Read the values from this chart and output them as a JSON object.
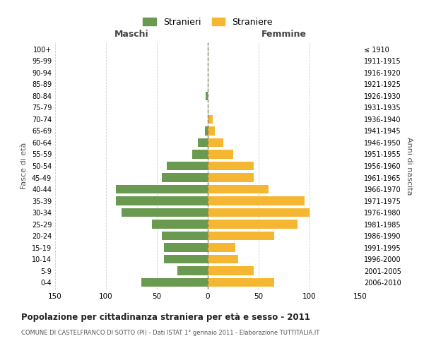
{
  "age_groups": [
    "0-4",
    "5-9",
    "10-14",
    "15-19",
    "20-24",
    "25-29",
    "30-34",
    "35-39",
    "40-44",
    "45-49",
    "50-54",
    "55-59",
    "60-64",
    "65-69",
    "70-74",
    "75-79",
    "80-84",
    "85-89",
    "90-94",
    "95-99",
    "100+"
  ],
  "birth_years": [
    "2006-2010",
    "2001-2005",
    "1996-2000",
    "1991-1995",
    "1986-1990",
    "1981-1985",
    "1976-1980",
    "1971-1975",
    "1966-1970",
    "1961-1965",
    "1956-1960",
    "1951-1955",
    "1946-1950",
    "1941-1945",
    "1936-1940",
    "1931-1935",
    "1926-1930",
    "1921-1925",
    "1916-1920",
    "1911-1915",
    "≤ 1910"
  ],
  "males": [
    65,
    30,
    43,
    43,
    45,
    55,
    85,
    90,
    90,
    45,
    40,
    15,
    10,
    3,
    0,
    0,
    2,
    0,
    0,
    0,
    0
  ],
  "females": [
    65,
    45,
    30,
    27,
    65,
    88,
    100,
    95,
    60,
    45,
    45,
    25,
    15,
    7,
    5,
    0,
    0,
    0,
    0,
    0,
    0
  ],
  "male_color": "#6a9a50",
  "female_color": "#f5b731",
  "grid_color": "#cccccc",
  "center_line_color": "#888866",
  "title": "Popolazione per cittadinanza straniera per età e sesso - 2011",
  "subtitle": "COMUNE DI CASTELFRANCO DI SOTTO (PI) - Dati ISTAT 1° gennaio 2011 - Elaborazione TUTTITALIA.IT",
  "xlabel_left": "Maschi",
  "xlabel_right": "Femmine",
  "ylabel_left": "Fasce di età",
  "ylabel_right": "Anni di nascita",
  "legend_male": "Stranieri",
  "legend_female": "Straniere",
  "xlim": 150,
  "bg_color": "#ffffff"
}
